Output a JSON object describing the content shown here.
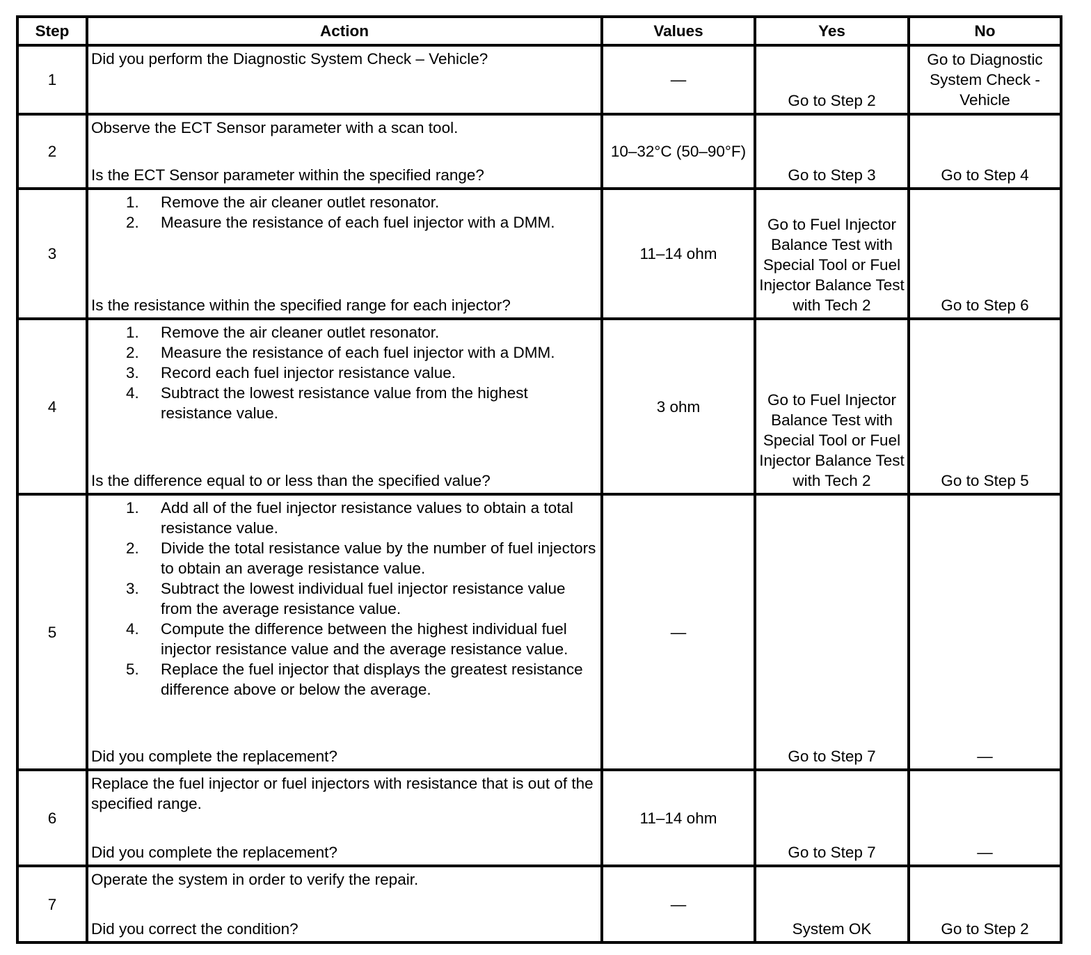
{
  "headers": [
    "Step",
    "Action",
    "Values",
    "Yes",
    "No"
  ],
  "rows": [
    {
      "step": "1",
      "intro": "Did you perform the Diagnostic System Check – Vehicle?",
      "list": [],
      "question": "",
      "values": "—",
      "yes": "Go to Step 2",
      "no": "Go to Diagnostic System Check - Vehicle"
    },
    {
      "step": "2",
      "intro": "Observe the ECT Sensor parameter with a scan tool.",
      "list": [],
      "question": "Is the ECT Sensor parameter within the specified range?",
      "values": "10–32°C (50–90°F)",
      "yes": "Go to Step 3",
      "no": "Go to Step 4"
    },
    {
      "step": "3",
      "intro": "",
      "list": [
        "Remove the air cleaner outlet resonator.",
        "Measure the resistance of each fuel injector with a DMM."
      ],
      "question": "Is the resistance within the specified range for each injector?",
      "values": "11–14 ohm",
      "yes": "Go to Fuel Injector Balance Test with Special Tool or Fuel Injector Balance Test with Tech 2",
      "no": "Go to Step 6"
    },
    {
      "step": "4",
      "intro": "",
      "list": [
        "Remove the air cleaner outlet resonator.",
        "Measure the resistance of each fuel injector with a DMM.",
        "Record each fuel injector resistance value.",
        "Subtract the lowest resistance value from the highest resistance value."
      ],
      "question": "Is the difference equal to or less than the specified value?",
      "values": "3 ohm",
      "yes": "Go to Fuel Injector Balance Test with Special Tool or Fuel Injector Balance Test with Tech 2",
      "no": "Go to Step 5"
    },
    {
      "step": "5",
      "intro": "",
      "list": [
        "Add all of the fuel injector resistance values to obtain a total resistance value.",
        "Divide the total resistance value by the number of fuel injectors to obtain an average resistance value.",
        "Subtract the lowest individual fuel injector resistance value from the average resistance value.",
        "Compute the difference between the highest individual fuel injector resistance value and the average resistance value.",
        "Replace the fuel injector that displays the greatest resistance difference above or below the average."
      ],
      "question": "Did you complete the replacement?",
      "values": "—",
      "yes": "Go to Step 7",
      "no": "—"
    },
    {
      "step": "6",
      "intro": "Replace the fuel injector or fuel injectors with resistance that is out of the specified range.",
      "list": [],
      "question": "Did you complete the replacement?",
      "values": "11–14 ohm",
      "yes": "Go to Step 7",
      "no": "—"
    },
    {
      "step": "7",
      "intro": "Operate the system in order to verify the repair.",
      "list": [],
      "question": "Did you correct the condition?",
      "values": "—",
      "yes": "System OK",
      "no": "Go to Step 2"
    }
  ]
}
